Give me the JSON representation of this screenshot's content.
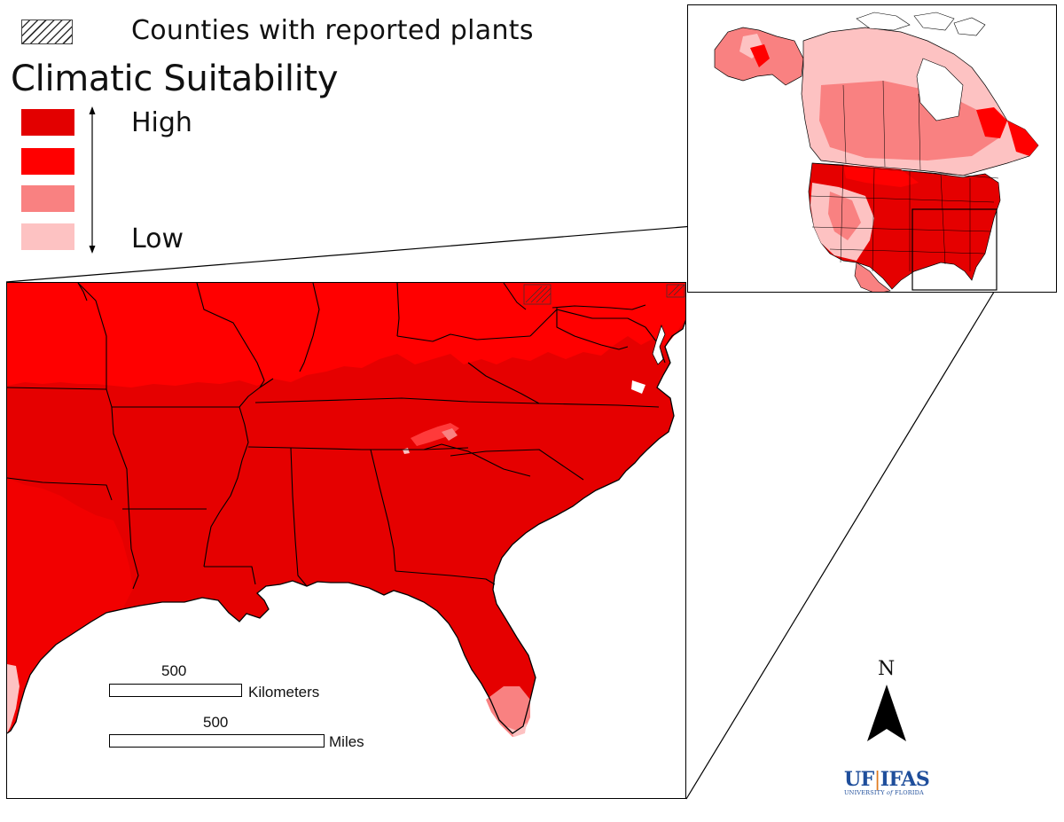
{
  "legend": {
    "hatch_label": "Counties with reported plants",
    "title": "Climatic Suitability",
    "high_label": "High",
    "low_label": "Low",
    "classes": [
      {
        "level": "highest",
        "color": "#e30000"
      },
      {
        "level": "high",
        "color": "#ff0000"
      },
      {
        "level": "low",
        "color": "#f98181"
      },
      {
        "level": "lowest",
        "color": "#fdc2c2"
      }
    ]
  },
  "scale": {
    "km_value": "500",
    "km_unit": "Kilometers",
    "mi_value": "500",
    "mi_unit": "Miles"
  },
  "north_label": "N",
  "logo": {
    "uf": "UF",
    "sep": "|",
    "ifas": "IFAS",
    "sub_prefix": "UNIVERSITY ",
    "sub_of": "of",
    "sub_suffix": " FLORIDA"
  },
  "colors": {
    "suitability_highest": "#e30000",
    "suitability_high": "#ff0000",
    "suitability_low": "#f98181",
    "suitability_lowest": "#fdc2c2",
    "logo_blue": "#1f4e9b",
    "logo_orange": "#e07a1f"
  }
}
